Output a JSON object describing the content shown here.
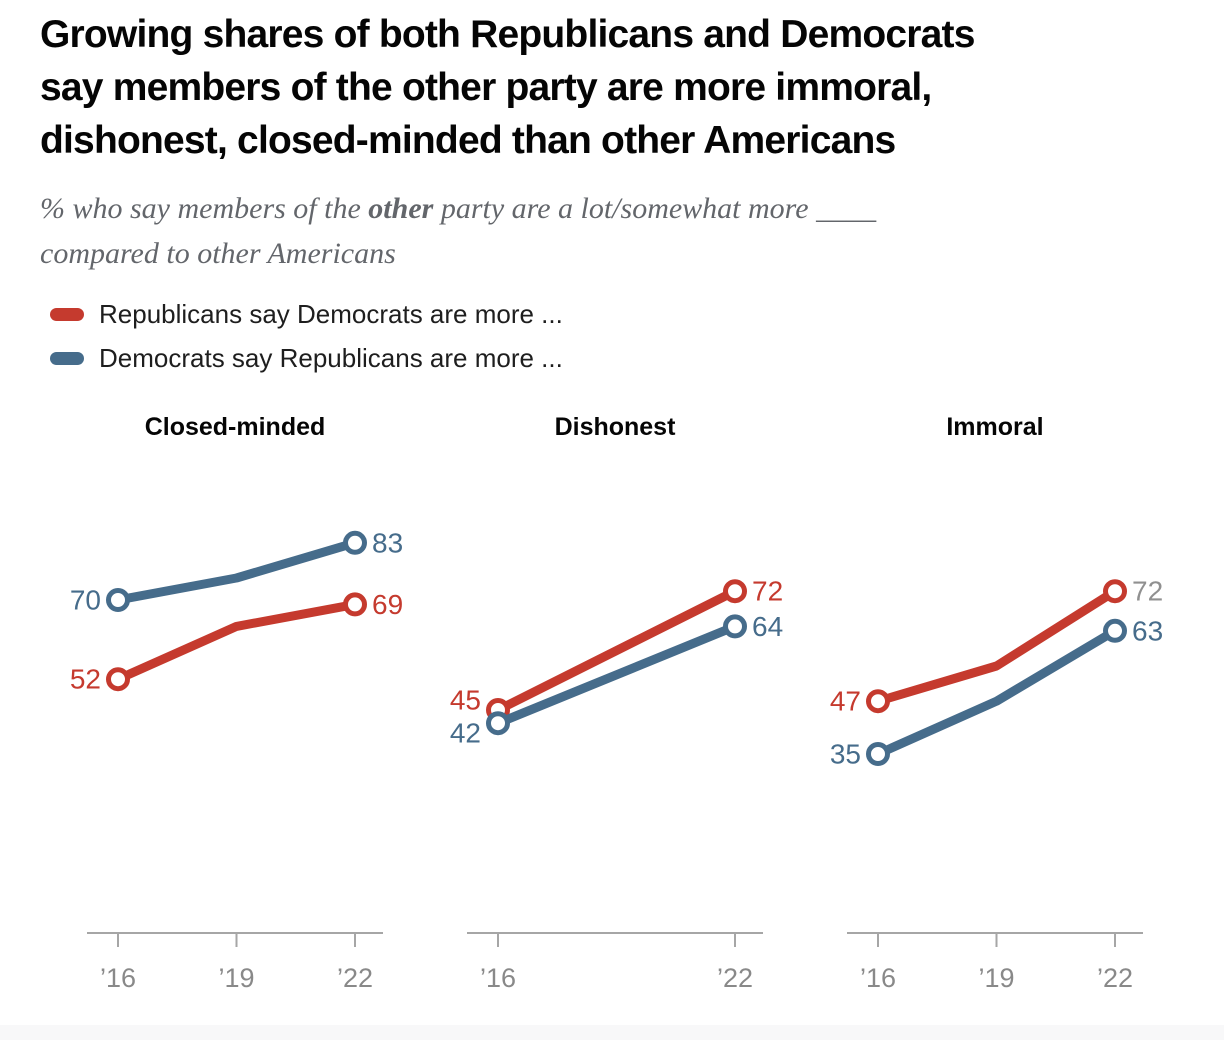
{
  "header": {
    "title_lines": [
      "Growing shares of both Republicans and Democrats",
      "say members of the other party are more immoral,",
      "dishonest, closed-minded than other Americans"
    ]
  },
  "subtitle": {
    "prefix": "% who say members of the ",
    "bold": "other",
    "suffix": " party are a lot/somewhat more ",
    "blank": "____",
    "line2": "compared to other Americans"
  },
  "legend": {
    "items": [
      {
        "label": "Republicans say Democrats are more ...",
        "color": "#c53a2e"
      },
      {
        "label": "Democrats say Republicans are more ...",
        "color": "#466c8b"
      }
    ]
  },
  "colors": {
    "republican_red": "#c53a2e",
    "democrat_blue": "#466c8b",
    "axis": "#a6a6a6",
    "tick_label": "#898989",
    "muted_value_label": "#909090"
  },
  "chart_data": [
    {
      "type": "line",
      "title": "Closed-minded",
      "ylim": [
        0,
        100
      ],
      "grid": false,
      "legend_position": "top-left",
      "x_ticks": [
        {
          "year": 2016,
          "label": "’16"
        },
        {
          "year": 2019,
          "label": "’19"
        },
        {
          "year": 2022,
          "label": "’22"
        }
      ],
      "series": [
        {
          "name": "Republicans say Democrats are more ...",
          "party": "republican",
          "color": "#c53a2e",
          "x": [
            2016,
            2019,
            2022
          ],
          "values": [
            52,
            64,
            69
          ],
          "endpoint_labels": [
            "52",
            "69"
          ]
        },
        {
          "name": "Democrats say Republicans are more ...",
          "party": "democrat",
          "color": "#466c8b",
          "x": [
            2016,
            2019,
            2022
          ],
          "values": [
            70,
            75,
            83
          ],
          "endpoint_labels": [
            "70",
            "83"
          ]
        }
      ]
    },
    {
      "type": "line",
      "title": "Dishonest",
      "ylim": [
        0,
        100
      ],
      "grid": false,
      "x_ticks": [
        {
          "year": 2016,
          "label": "’16"
        },
        {
          "year": 2022,
          "label": "’22"
        }
      ],
      "series": [
        {
          "name": "Republicans say Democrats are more ...",
          "party": "republican",
          "color": "#c53a2e",
          "x": [
            2016,
            2022
          ],
          "values": [
            45,
            72
          ],
          "endpoint_labels": [
            "45",
            "72"
          ]
        },
        {
          "name": "Democrats say Republicans are more ...",
          "party": "democrat",
          "color": "#466c8b",
          "x": [
            2016,
            2022
          ],
          "values": [
            42,
            64
          ],
          "endpoint_labels": [
            "42",
            "64"
          ]
        }
      ]
    },
    {
      "type": "line",
      "title": "Immoral",
      "ylim": [
        0,
        100
      ],
      "grid": false,
      "x_ticks": [
        {
          "year": 2016,
          "label": "’16"
        },
        {
          "year": 2019,
          "label": "’19"
        },
        {
          "year": 2022,
          "label": "’22"
        }
      ],
      "series": [
        {
          "name": "Republicans say Democrats are more ...",
          "party": "republican",
          "color": "#c53a2e",
          "x": [
            2016,
            2019,
            2022
          ],
          "values": [
            47,
            55,
            72
          ],
          "endpoint_labels": [
            "47",
            "72"
          ],
          "endpoint_label_colors": [
            "#c53a2e",
            "#909090"
          ]
        },
        {
          "name": "Democrats say Republicans are more ...",
          "party": "democrat",
          "color": "#466c8b",
          "x": [
            2016,
            2019,
            2022
          ],
          "values": [
            35,
            47,
            63
          ],
          "endpoint_labels": [
            "35",
            "63"
          ]
        }
      ]
    }
  ]
}
